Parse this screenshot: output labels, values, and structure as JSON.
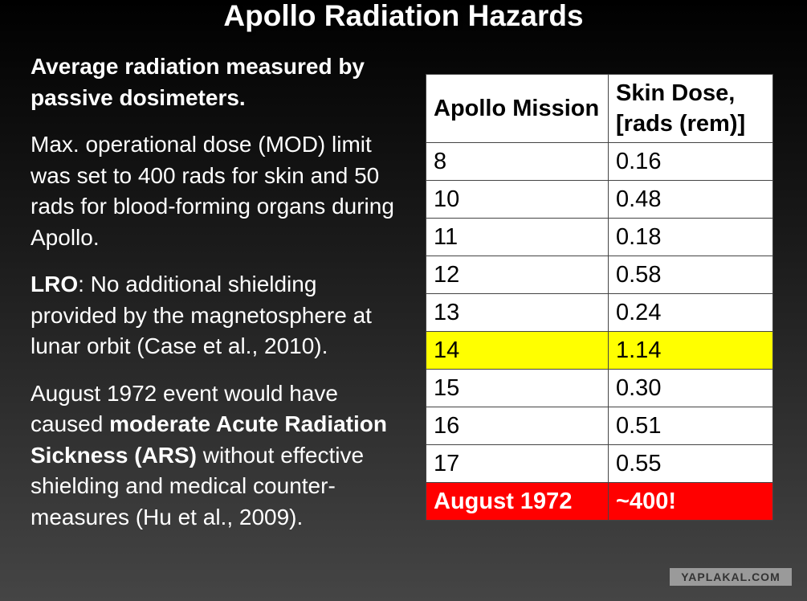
{
  "header": {
    "title": "Apollo Radiation Hazards"
  },
  "paragraphs": [
    [
      {
        "text": "Average radiation measured by passive dosimeters.",
        "bold": true
      }
    ],
    [
      {
        "text": "Max. operational dose (MOD) limit was set to 400 rads for skin and 50 rads for blood-forming organs during Apollo.",
        "bold": false
      }
    ],
    [
      {
        "text": "LRO",
        "bold": true
      },
      {
        "text": ": No additional shielding provided by the magnetosphere at lunar orbit (Case et al., 2010).",
        "bold": false
      }
    ],
    [
      {
        "text": "August 1972 event would have caused ",
        "bold": false
      },
      {
        "text": "moderate Acute Radiation Sickness (ARS)",
        "bold": true
      },
      {
        "text": " without effective shielding and medical counter-measures (Hu et al., 2009).",
        "bold": false
      }
    ]
  ],
  "table": {
    "columns": [
      "Apollo Mission",
      "Skin Dose, [rads (rem)]"
    ],
    "rows": [
      [
        "8",
        "0.16"
      ],
      [
        "10",
        "0.48"
      ],
      [
        "11",
        "0.18"
      ],
      [
        "12",
        "0.58"
      ],
      [
        "13",
        "0.24"
      ],
      [
        "14",
        "1.14"
      ],
      [
        "15",
        "0.30"
      ],
      [
        "16",
        "0.51"
      ],
      [
        "17",
        "0.55"
      ],
      [
        "August 1972",
        "~400!"
      ]
    ]
  },
  "watermark": "YAPLAKAL.COM"
}
